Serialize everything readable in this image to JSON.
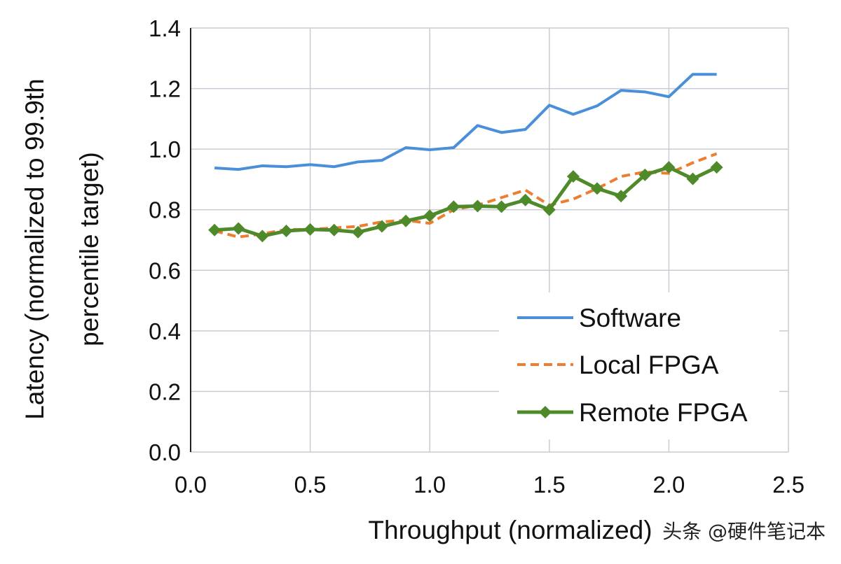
{
  "chart_data": {
    "type": "line",
    "title": "",
    "xlabel": "Throughput (normalized)",
    "ylabel": "Latency (normalized to 99.9th percentile target)",
    "ylabel_lines": [
      "Latency (normalized to 99.9th",
      "percentile target)"
    ],
    "xlim": [
      0,
      2.5
    ],
    "ylim": [
      0,
      1.4
    ],
    "xticks": [
      "0.0",
      "0.5",
      "1.0",
      "1.5",
      "2.0",
      "2.5"
    ],
    "yticks": [
      "0.0",
      "0.2",
      "0.4",
      "0.6",
      "0.8",
      "1.0",
      "1.2",
      "1.4"
    ],
    "grid": true,
    "legend_position": "bottom-right",
    "x": [
      0.1,
      0.2,
      0.3,
      0.4,
      0.5,
      0.6,
      0.7,
      0.8,
      0.9,
      1.0,
      1.1,
      1.2,
      1.3,
      1.4,
      1.5,
      1.6,
      1.7,
      1.8,
      1.9,
      2.0,
      2.1,
      2.2
    ],
    "series": [
      {
        "name": "Software",
        "color": "#4a90d9",
        "style": "solid",
        "marker": "none",
        "values": [
          0.938,
          0.933,
          0.945,
          0.942,
          0.949,
          0.942,
          0.958,
          0.963,
          1.005,
          0.998,
          1.005,
          1.078,
          1.055,
          1.065,
          1.145,
          1.115,
          1.143,
          1.194,
          1.189,
          1.173,
          1.247,
          1.247
        ]
      },
      {
        "name": "Local FPGA",
        "color": "#ed7d31",
        "style": "dashed",
        "marker": "none",
        "values": [
          0.73,
          0.71,
          0.72,
          0.735,
          0.735,
          0.74,
          0.745,
          0.76,
          0.765,
          0.755,
          0.8,
          0.815,
          0.84,
          0.865,
          0.815,
          0.835,
          0.87,
          0.91,
          0.925,
          0.92,
          0.955,
          0.985
        ]
      },
      {
        "name": "Remote FPGA",
        "color": "#4e8a2a",
        "style": "solid",
        "marker": "diamond",
        "values": [
          0.733,
          0.738,
          0.713,
          0.73,
          0.735,
          0.733,
          0.726,
          0.745,
          0.763,
          0.78,
          0.81,
          0.812,
          0.81,
          0.832,
          0.8,
          0.91,
          0.87,
          0.845,
          0.915,
          0.94,
          0.902,
          0.94
        ]
      }
    ]
  },
  "watermark": "头条 @硬件笔记本"
}
